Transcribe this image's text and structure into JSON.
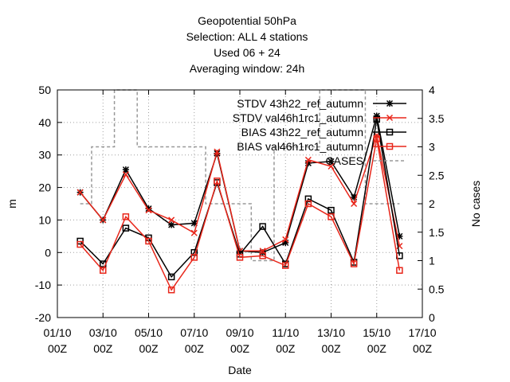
{
  "chart_data": {
    "type": "line",
    "title_lines": [
      "Geopotential 50hPa",
      "Selection: ALL       4 stations",
      "Used  06  + 24",
      "Averaging window: 24h"
    ],
    "xlabel": "Date",
    "ylabel": "m",
    "y2label": "No cases",
    "xlim": [
      0,
      8
    ],
    "ylim": [
      -20,
      50
    ],
    "y2lim": [
      0,
      4
    ],
    "grid": true,
    "legend_position": "top-right",
    "x_ticks": [
      {
        "x": 0,
        "l1": "01/10",
        "l2": "00Z"
      },
      {
        "x": 1,
        "l1": "03/10",
        "l2": "00Z"
      },
      {
        "x": 2,
        "l1": "05/10",
        "l2": "00Z"
      },
      {
        "x": 3,
        "l1": "07/10",
        "l2": "00Z"
      },
      {
        "x": 4,
        "l1": "09/10",
        "l2": "00Z"
      },
      {
        "x": 5,
        "l1": "11/10",
        "l2": "00Z"
      },
      {
        "x": 6,
        "l1": "13/10",
        "l2": "00Z"
      },
      {
        "x": 7,
        "l1": "15/10",
        "l2": "00Z"
      },
      {
        "x": 8,
        "l1": "17/10",
        "l2": "00Z"
      }
    ],
    "y_ticks": [
      -20,
      -10,
      0,
      10,
      20,
      30,
      40,
      50
    ],
    "y2_ticks": [
      "0",
      "0.5",
      "1",
      "1.5",
      "2",
      "2.5",
      "3",
      "3.5",
      "4"
    ],
    "x": [
      0.5,
      1.0,
      1.5,
      2.0,
      2.5,
      3.0,
      3.5,
      4.0,
      4.5,
      5.0,
      5.5,
      6.0,
      6.5,
      7.0,
      7.5
    ],
    "series": [
      {
        "name": "STDV 43h22_ref_autumn",
        "color": "#000000",
        "marker": "star",
        "axis": "y",
        "values": [
          18.5,
          10,
          25.5,
          13.5,
          8.5,
          9,
          30.5,
          0.5,
          0,
          3,
          27.5,
          28,
          17,
          42,
          5
        ]
      },
      {
        "name": "STDV val46h1rc1_autumn",
        "color": "#e8261a",
        "marker": "x",
        "axis": "y",
        "values": [
          18.5,
          10,
          24,
          13,
          10,
          6,
          31,
          0.5,
          0.5,
          4,
          28.5,
          26.5,
          15,
          36,
          2
        ]
      },
      {
        "name": "BIAS 43h22_ref_autumn",
        "color": "#000000",
        "marker": "square",
        "axis": "y",
        "values": [
          3.5,
          -3.5,
          7.5,
          4.5,
          -7.5,
          0,
          21.5,
          -0.5,
          8,
          -3.5,
          16.5,
          13,
          -3,
          41,
          -1
        ]
      },
      {
        "name": "BIAS val46h1rc1_autumn",
        "color": "#e8261a",
        "marker": "square",
        "axis": "y",
        "values": [
          2.5,
          -5.5,
          11,
          3.5,
          -11.5,
          -1.5,
          22,
          -1.5,
          -1,
          -4,
          15,
          11,
          -3.5,
          35,
          -5.5
        ]
      },
      {
        "name": "CASES",
        "color": "#999999",
        "marker": "none",
        "dash": true,
        "axis": "y2",
        "values": [
          2,
          3,
          4,
          3,
          3,
          3,
          2,
          2,
          1,
          3,
          3,
          4,
          4,
          2,
          2
        ]
      }
    ]
  }
}
